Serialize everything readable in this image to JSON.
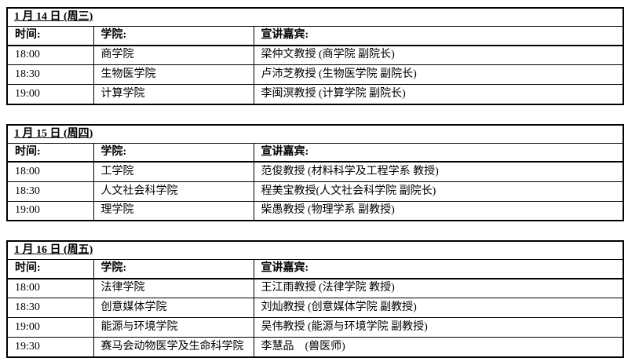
{
  "columns": [
    "时间:",
    "学院:",
    "宣讲嘉宾:"
  ],
  "tables": [
    {
      "date": "1 月 14 日 (周三)",
      "rows": [
        {
          "time": "18:00",
          "college": "商学院",
          "guest": "梁仲文教授 (商学院 副院长)"
        },
        {
          "time": "18:30",
          "college": "生物医学院",
          "guest": "卢沛芝教授 (生物医学院 副院长)"
        },
        {
          "time": "19:00",
          "college": "计算学院",
          "guest": "李闽溟教授 (计算学院 副院长)"
        }
      ]
    },
    {
      "date": "1 月 15 日 (周四)",
      "rows": [
        {
          "time": "18:00",
          "college": "工学院",
          "guest": "范俊教授 (材料科学及工程学系 教授)"
        },
        {
          "time": "18:30",
          "college": "人文社会科学院",
          "guest": "程美宝教授(人文社会科学院 副院长)"
        },
        {
          "time": "19:00",
          "college": "理学院",
          "guest": "柴愚教授 (物理学系 副教授)"
        }
      ]
    },
    {
      "date": "1 月 16 日 (周五)",
      "rows": [
        {
          "time": "18:00",
          "college": "法律学院",
          "guest": "王江雨教授 (法律学院 教授)"
        },
        {
          "time": "18:30",
          "college": "创意媒体学院",
          "guest": "刘灿教授 (创意媒体学院 副教授)"
        },
        {
          "time": "19:00",
          "college": "能源与环境学院",
          "guest": "吴伟教授 (能源与环境学院 副教授)"
        },
        {
          "time": "19:30",
          "college": "赛马会动物医学及生命科学院",
          "guest": "李慧品　(兽医师)"
        }
      ]
    }
  ],
  "colors": {
    "border": "#000000",
    "text": "#000000",
    "background": "#ffffff"
  }
}
